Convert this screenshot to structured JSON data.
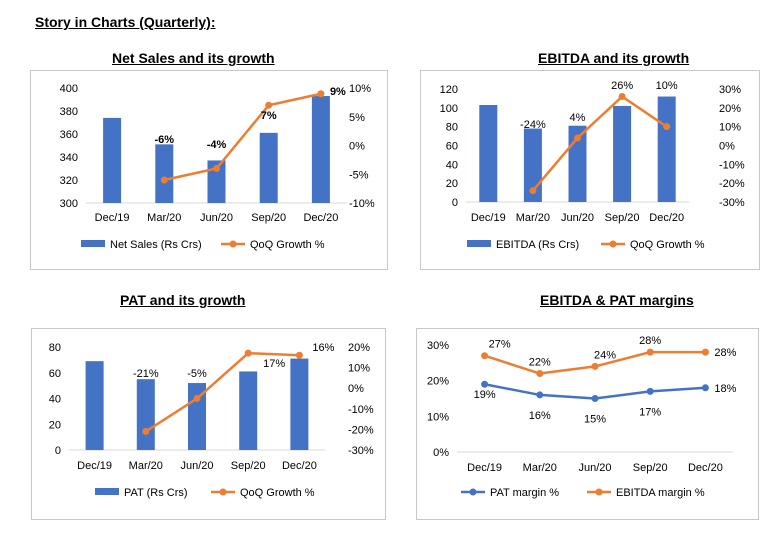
{
  "page": {
    "title": "Story in Charts (Quarterly):"
  },
  "colors": {
    "bar": "#4472C4",
    "line": "#ED7D31",
    "line_blue": "#4472C4",
    "axis": "#d9d9d9",
    "text": "#595959"
  },
  "chart_data": [
    {
      "type": "bar",
      "title": "Net Sales and its growth",
      "categories": [
        "Dec/19",
        "Mar/20",
        "Jun/20",
        "Sep/20",
        "Dec/20"
      ],
      "series": [
        {
          "name": "Net Sales (Rs Crs)",
          "type": "bar",
          "axis": "left",
          "values": [
            374,
            351,
            337,
            361,
            393
          ]
        },
        {
          "name": "QoQ Growth %",
          "type": "line",
          "axis": "right",
          "values": [
            null,
            -6,
            -4,
            7,
            9
          ],
          "labels": [
            "",
            "-6%",
            "-4%",
            "7%",
            "9%"
          ]
        }
      ],
      "ylim": [
        300,
        400
      ],
      "yticks": [
        "300",
        "320",
        "340",
        "360",
        "380",
        "400"
      ],
      "y2lim": [
        -10,
        10
      ],
      "y2ticks": [
        "-10%",
        "-5%",
        "0%",
        "5%",
        "10%"
      ],
      "legend": "bottom"
    },
    {
      "type": "bar",
      "title": "EBITDA and its growth",
      "categories": [
        "Dec/19",
        "Mar/20",
        "Jun/20",
        "Sep/20",
        "Dec/20"
      ],
      "series": [
        {
          "name": "EBITDA (Rs Crs)",
          "type": "bar",
          "axis": "left",
          "values": [
            103,
            78,
            81,
            102,
            112
          ]
        },
        {
          "name": "QoQ Growth %",
          "type": "line",
          "axis": "right",
          "values": [
            null,
            -24,
            4,
            26,
            10
          ],
          "labels": [
            "",
            "-24%",
            "4%",
            "26%",
            "10%"
          ]
        }
      ],
      "ylim": [
        0,
        120
      ],
      "yticks": [
        "0",
        "20",
        "40",
        "60",
        "80",
        "100",
        "120"
      ],
      "y2lim": [
        -30,
        30
      ],
      "y2ticks": [
        "-30%",
        "-20%",
        "-10%",
        "0%",
        "10%",
        "20%",
        "30%"
      ],
      "legend": "bottom"
    },
    {
      "type": "bar",
      "title": "PAT and its growth",
      "categories": [
        "Dec/19",
        "Mar/20",
        "Jun/20",
        "Sep/20",
        "Dec/20"
      ],
      "series": [
        {
          "name": "PAT (Rs Crs)",
          "type": "bar",
          "axis": "left",
          "values": [
            69,
            55,
            52,
            61,
            71
          ]
        },
        {
          "name": "QoQ Growth %",
          "type": "line",
          "axis": "right",
          "values": [
            null,
            -21,
            -5,
            17,
            16
          ],
          "labels": [
            "",
            "-21%",
            "-5%",
            "17%",
            "16%"
          ]
        }
      ],
      "ylim": [
        0,
        80
      ],
      "yticks": [
        "0",
        "20",
        "40",
        "60",
        "80"
      ],
      "y2lim": [
        -30,
        20
      ],
      "y2ticks": [
        "-30%",
        "-20%",
        "-10%",
        "0%",
        "10%",
        "20%"
      ],
      "legend": "bottom"
    },
    {
      "type": "line",
      "title": "EBITDA & PAT margins",
      "categories": [
        "Dec/19",
        "Mar/20",
        "Jun/20",
        "Sep/20",
        "Dec/20"
      ],
      "series": [
        {
          "name": "PAT margin %",
          "type": "line",
          "color": "blue",
          "values": [
            19,
            16,
            15,
            17,
            18
          ],
          "labels": [
            "19%",
            "16%",
            "15%",
            "17%",
            "18%"
          ]
        },
        {
          "name": "EBITDA margin %",
          "type": "line",
          "color": "orange",
          "values": [
            27,
            22,
            24,
            28,
            28
          ],
          "labels": [
            "27%",
            "22%",
            "24%",
            "28%",
            "28%"
          ]
        }
      ],
      "ylim": [
        0,
        30
      ],
      "yticks": [
        "0%",
        "10%",
        "20%",
        "30%"
      ],
      "legend": "bottom"
    }
  ]
}
